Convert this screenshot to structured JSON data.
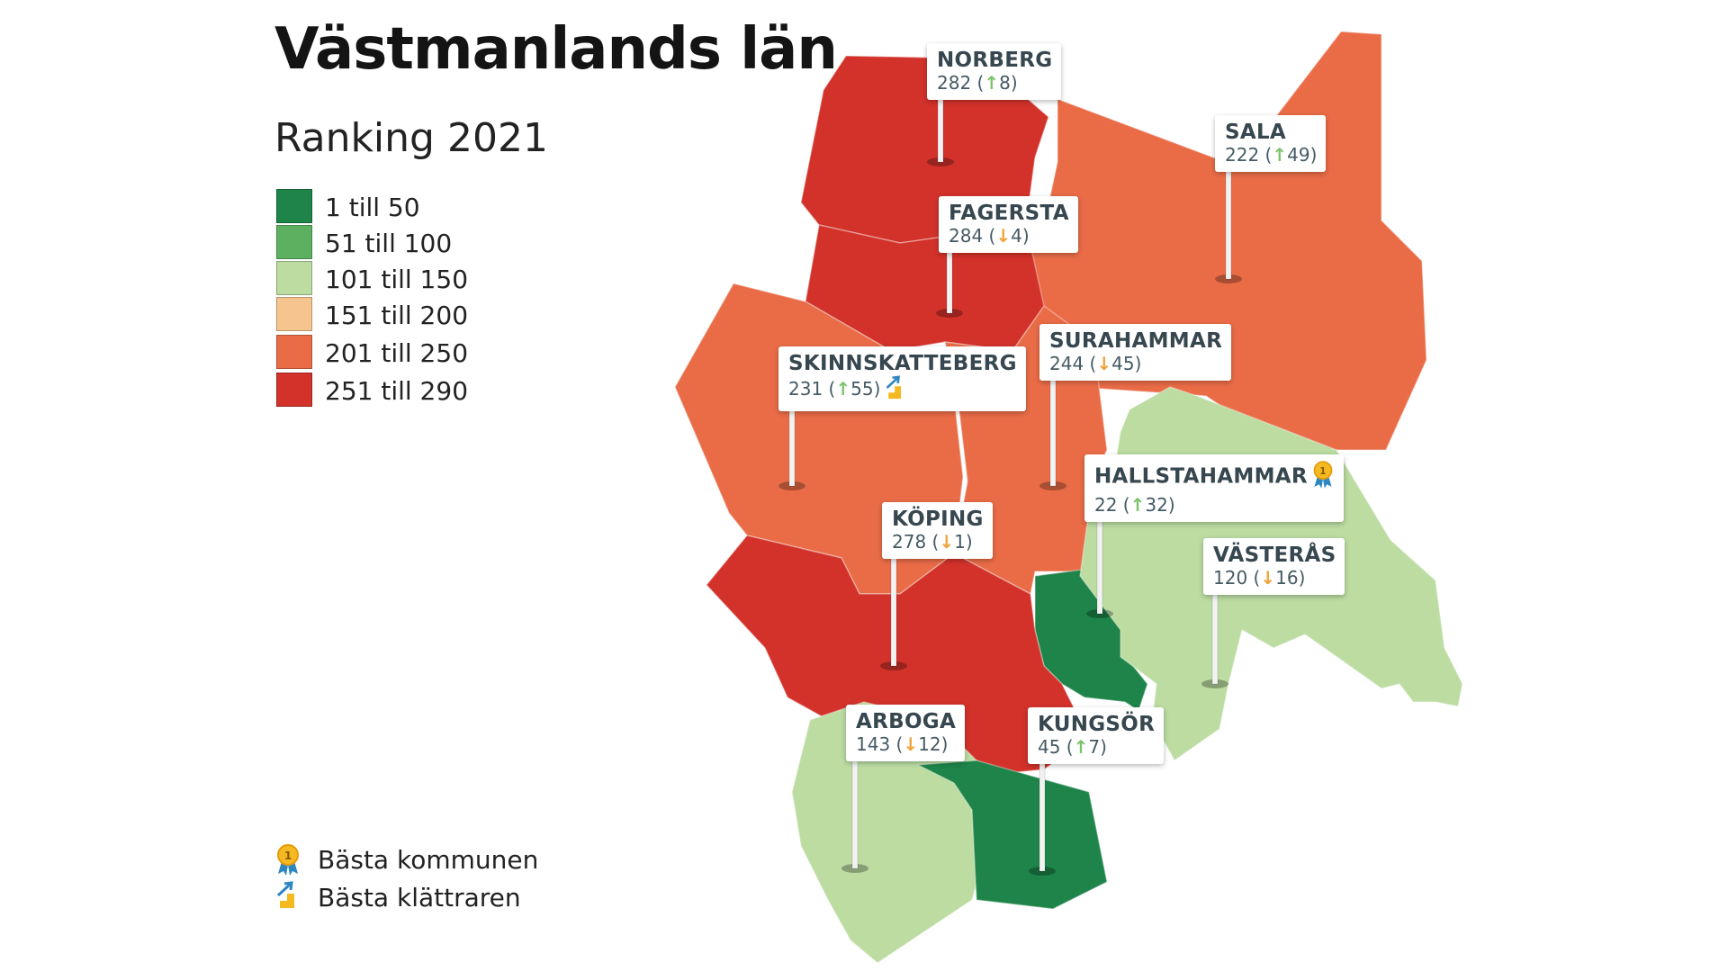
{
  "title": "Västmanlands län",
  "subtitle": "Ranking 2021",
  "legend": [
    {
      "label": "1 till 50",
      "color": "#1e8449"
    },
    {
      "label": "51 till 100",
      "color": "#5cb060"
    },
    {
      "label": "101 till 150",
      "color": "#bcdca2"
    },
    {
      "label": "151 till 200",
      "color": "#f6c48f"
    },
    {
      "label": "201 till 250",
      "color": "#e96c47"
    },
    {
      "label": "251 till 290",
      "color": "#d2322a"
    }
  ],
  "icon_legend": {
    "best": {
      "icon": "medal-icon",
      "label": "Bästa kommunen"
    },
    "climber": {
      "icon": "climber-icon",
      "label": "Bästa klättraren"
    }
  },
  "municipalities": [
    {
      "id": "norberg",
      "name": "NORBERG",
      "rank": "282",
      "change": "8",
      "direction": "up",
      "color": "#d2322a"
    },
    {
      "id": "sala",
      "name": "SALA",
      "rank": "222",
      "change": "49",
      "direction": "up",
      "color": "#e96c47"
    },
    {
      "id": "fagersta",
      "name": "FAGERSTA",
      "rank": "284",
      "change": "4",
      "direction": "down",
      "color": "#d2322a"
    },
    {
      "id": "surahammar",
      "name": "SURAHAMMAR",
      "rank": "244",
      "change": "45",
      "direction": "down",
      "color": "#e96c47"
    },
    {
      "id": "skinnskatteberg",
      "name": "SKINNSKATTEBERG",
      "rank": "231",
      "change": "55",
      "direction": "up",
      "color": "#e96c47",
      "badge": "climber-icon"
    },
    {
      "id": "hallstahammar",
      "name": "HALLSTAHAMMAR",
      "rank": "22",
      "change": "32",
      "direction": "up",
      "color": "#1e8449",
      "badge": "medal-icon"
    },
    {
      "id": "koping",
      "name": "KÖPING",
      "rank": "278",
      "change": "1",
      "direction": "down",
      "color": "#d2322a"
    },
    {
      "id": "vasteras",
      "name": "VÄSTERÅS",
      "rank": "120",
      "change": "16",
      "direction": "down",
      "color": "#bcdca2"
    },
    {
      "id": "arboga",
      "name": "ARBOGA",
      "rank": "143",
      "change": "12",
      "direction": "down",
      "color": "#bcdca2"
    },
    {
      "id": "kungsor",
      "name": "KUNGSÖR",
      "rank": "45",
      "change": "7",
      "direction": "up",
      "color": "#1e8449"
    }
  ]
}
